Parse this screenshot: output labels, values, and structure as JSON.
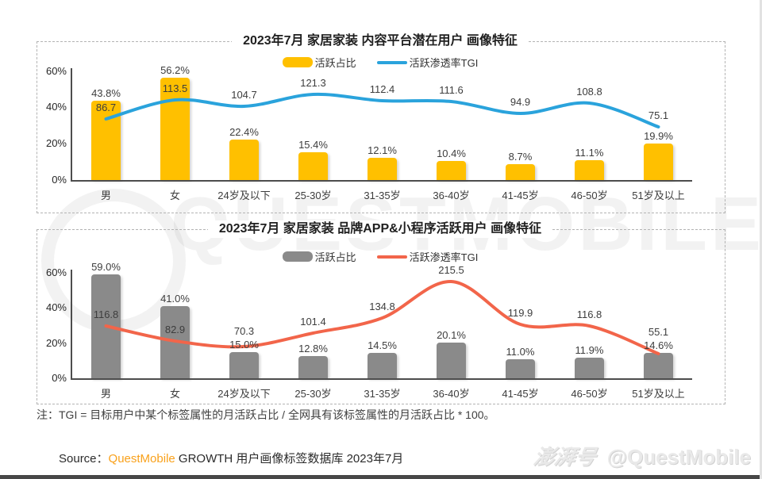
{
  "page": {
    "note": "注：TGI = 目标用户中某个标签属性的月活跃占比 / 全网具有该标签属性的月活跃占比 * 100。",
    "source_prefix": "Source：",
    "source_brand": "QuestMobile",
    "source_rest": " GROWTH 用户画像标签数据库 2023年7月",
    "brand_color": "#F9A11B",
    "watermark_big": "QUESTMOBILE",
    "watermark_pengpai": "澎湃号",
    "watermark_handle": "@QuestMobile"
  },
  "chart_data": [
    {
      "type": "bar",
      "title": "2023年7月 家居家装 内容平台潜在用户 画像特征",
      "categories": [
        "男",
        "女",
        "24岁及以下",
        "25-30岁",
        "31-35岁",
        "36-40岁",
        "41-45岁",
        "46-50岁",
        "51岁及以上"
      ],
      "series": [
        {
          "name": "活跃占比",
          "type": "bar",
          "unit": "%",
          "color": "#FFC000",
          "values": [
            43.8,
            56.2,
            22.4,
            15.4,
            12.1,
            10.4,
            8.7,
            11.1,
            19.9
          ]
        },
        {
          "name": "活跃渗透率TGI",
          "type": "line",
          "color": "#2AA3DC",
          "values": [
            86.7,
            113.5,
            104.7,
            121.3,
            112.4,
            111.6,
            94.9,
            108.8,
            75.1
          ]
        }
      ],
      "ylim": [
        0,
        60
      ],
      "y_ticks": [
        0,
        20,
        40,
        60
      ],
      "grid": false,
      "legend_position": "top-center"
    },
    {
      "type": "bar",
      "title": "2023年7月 家居家装 品牌APP&小程序活跃用户 画像特征",
      "categories": [
        "男",
        "女",
        "24岁及以下",
        "25-30岁",
        "31-35岁",
        "36-40岁",
        "41-45岁",
        "46-50岁",
        "51岁及以上"
      ],
      "series": [
        {
          "name": "活跃占比",
          "type": "bar",
          "unit": "%",
          "color": "#8A8A8A",
          "values": [
            59.0,
            41.0,
            15.0,
            12.8,
            14.5,
            20.1,
            11.0,
            11.9,
            14.6
          ]
        },
        {
          "name": "活跃渗透率TGI",
          "type": "line",
          "color": "#F2654A",
          "values": [
            116.8,
            82.9,
            70.3,
            101.4,
            134.8,
            215.5,
            119.9,
            116.8,
            55.1
          ]
        }
      ],
      "ylim": [
        0,
        60
      ],
      "y_ticks": [
        0,
        20,
        40,
        60
      ],
      "grid": false,
      "legend_position": "top-center"
    }
  ]
}
